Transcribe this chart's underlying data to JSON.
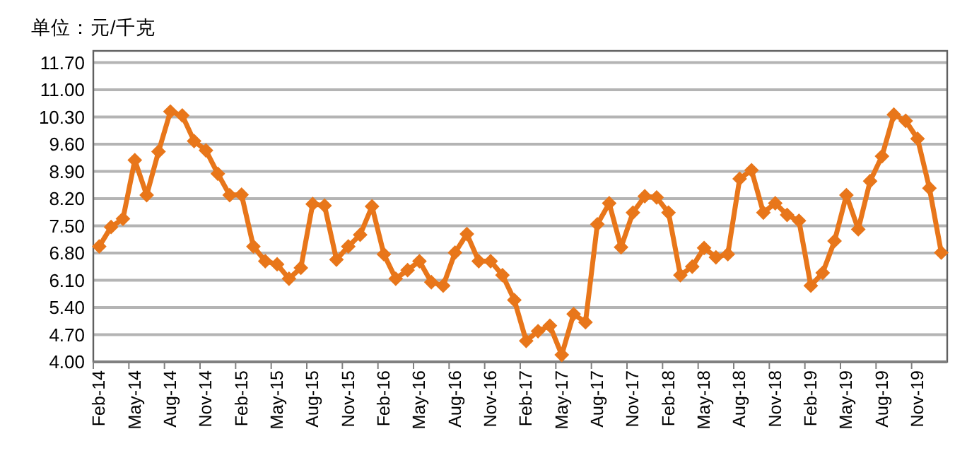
{
  "chart_data": {
    "type": "line",
    "ylabel": "单位：元/千克",
    "categories": [
      "Feb-14",
      null,
      null,
      "May-14",
      null,
      null,
      "Aug-14",
      null,
      null,
      "Nov-14",
      null,
      null,
      "Feb-15",
      null,
      null,
      "May-15",
      null,
      null,
      "Aug-15",
      null,
      null,
      "Nov-15",
      null,
      null,
      "Feb-16",
      null,
      null,
      "May-16",
      null,
      null,
      "Aug-16",
      null,
      null,
      "Nov-16",
      null,
      null,
      "Feb-17",
      null,
      null,
      "May-17",
      null,
      null,
      "Aug-17",
      null,
      null,
      "Nov-17",
      null,
      null,
      "Feb-18",
      null,
      null,
      "May-18",
      null,
      null,
      "Aug-18",
      null,
      null,
      "Nov-18",
      null,
      null,
      "Feb-19",
      null,
      null,
      "May-19",
      null,
      null,
      "Aug-19",
      null,
      null,
      "Nov-19",
      null,
      null
    ],
    "series": [
      {
        "color": "#e8761a",
        "values": [
          6.97,
          7.47,
          7.68,
          9.19,
          8.29,
          9.41,
          10.44,
          10.34,
          9.68,
          9.44,
          8.84,
          8.29,
          8.3,
          6.97,
          6.59,
          6.51,
          6.14,
          6.42,
          8.06,
          8.02,
          6.63,
          6.97,
          7.27,
          8.0,
          6.77,
          6.14,
          6.36,
          6.59,
          6.05,
          5.96,
          6.81,
          7.29,
          6.59,
          6.59,
          6.23,
          5.59,
          4.54,
          4.79,
          4.93,
          4.18,
          5.23,
          5.02,
          7.54,
          8.08,
          6.95,
          7.84,
          8.26,
          8.23,
          7.84,
          6.23,
          6.45,
          6.93,
          6.69,
          6.77,
          8.71,
          8.93,
          7.84,
          8.08,
          7.78,
          7.63,
          5.96,
          6.29,
          7.11,
          8.29,
          7.41,
          8.65,
          9.29,
          10.36,
          10.2,
          9.74,
          8.47,
          6.81
        ]
      }
    ],
    "ylim": [
      4,
      12
    ],
    "yticks": [
      {
        "value": 4,
        "label": "4.00"
      },
      {
        "value": 4.7,
        "label": "4.70"
      },
      {
        "value": 5.4,
        "label": "5.40"
      },
      {
        "value": 6.1,
        "label": "6.10"
      },
      {
        "value": 6.8,
        "label": "6.80"
      },
      {
        "value": 7.5,
        "label": "7.50"
      },
      {
        "value": 8.2,
        "label": "8.20"
      },
      {
        "value": 8.9,
        "label": "8.90"
      },
      {
        "value": 9.6,
        "label": "9.60"
      },
      {
        "value": 10.3,
        "label": "10.30"
      },
      {
        "value": 11,
        "label": "11.00"
      },
      {
        "value": 11.7,
        "label": "11.70"
      }
    ],
    "grid": "y",
    "marker": "diamond",
    "line_style": "solid"
  }
}
